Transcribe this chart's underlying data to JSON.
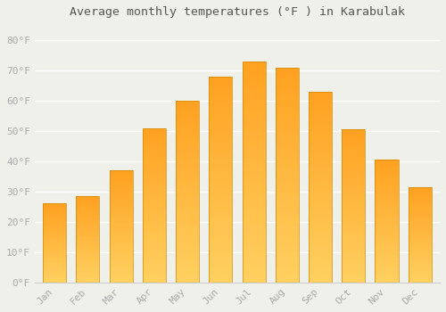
{
  "title": "Average monthly temperatures (°F ) in Karabulak",
  "months": [
    "Jan",
    "Feb",
    "Mar",
    "Apr",
    "May",
    "Jun",
    "Jul",
    "Aug",
    "Sep",
    "Oct",
    "Nov",
    "Dec"
  ],
  "values": [
    26.0,
    28.5,
    37.0,
    51.0,
    60.0,
    68.0,
    73.0,
    71.0,
    63.0,
    50.5,
    40.5,
    31.5
  ],
  "bar_color": "#FFA500",
  "bar_edge_color": "#CC8800",
  "background_color": "#F0F0EB",
  "grid_color": "#FFFFFF",
  "ylabel_values": [
    0,
    10,
    20,
    30,
    40,
    50,
    60,
    70,
    80
  ],
  "ylim": [
    0,
    85
  ],
  "tick_label_color": "#AAAAAA",
  "title_color": "#555555",
  "font_family": "monospace",
  "bar_bottom_color": "#FFD060",
  "bar_top_color": "#FFA020"
}
